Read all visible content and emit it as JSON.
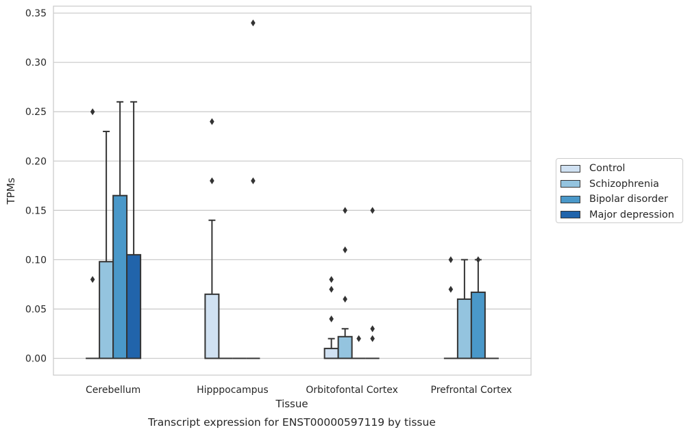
{
  "chart_data": {
    "type": "bar",
    "title": "",
    "caption": "Transcript expression for ENST00000597119 by tissue",
    "xlabel": "Tissue",
    "ylabel": "TPMs",
    "ylim": [
      -0.017,
      0.357
    ],
    "yticks": [
      "0.00",
      "0.05",
      "0.10",
      "0.15",
      "0.20",
      "0.25",
      "0.30",
      "0.35"
    ],
    "ytick_values": [
      0,
      0.05,
      0.1,
      0.15,
      0.2,
      0.25,
      0.3,
      0.35
    ],
    "grid": "horizontal",
    "legend_position": "right",
    "categories": [
      "Cerebellum",
      "Hipppocampus",
      "Orbitofontal Cortex",
      "Prefrontal Cortex"
    ],
    "series": [
      {
        "name": "Control",
        "color": "#d0e1f2",
        "values": [
          0,
          0.065,
          0.01,
          0
        ],
        "error_upper": [
          null,
          0.14,
          0.02,
          null
        ],
        "outliers": [
          [
            0.08,
            0.25
          ],
          [
            0.18,
            0.24
          ],
          [
            0.04,
            0.07,
            0.08
          ],
          [
            0.07,
            0.1
          ]
        ]
      },
      {
        "name": "Schizophrenia",
        "color": "#94c4df",
        "values": [
          0.098,
          0,
          0.022,
          0.06
        ],
        "error_upper": [
          0.23,
          null,
          0.03,
          0.1
        ],
        "outliers": [
          [],
          [],
          [
            0.06,
            0.11,
            0.15
          ],
          []
        ]
      },
      {
        "name": "Bipolar disorder",
        "color": "#4a98c9",
        "values": [
          0.165,
          0,
          0,
          0.067
        ],
        "error_upper": [
          0.26,
          null,
          null,
          0.1
        ],
        "outliers": [
          [],
          [],
          [
            0.02
          ],
          [
            0.1
          ]
        ]
      },
      {
        "name": "Major depression",
        "color": "#2164ab",
        "values": [
          0.105,
          0,
          0,
          0
        ],
        "error_upper": [
          0.26,
          null,
          null,
          null
        ],
        "outliers": [
          [],
          [
            0.18,
            0.34
          ],
          [
            0.02,
            0.03,
            0.15
          ],
          []
        ]
      }
    ]
  }
}
